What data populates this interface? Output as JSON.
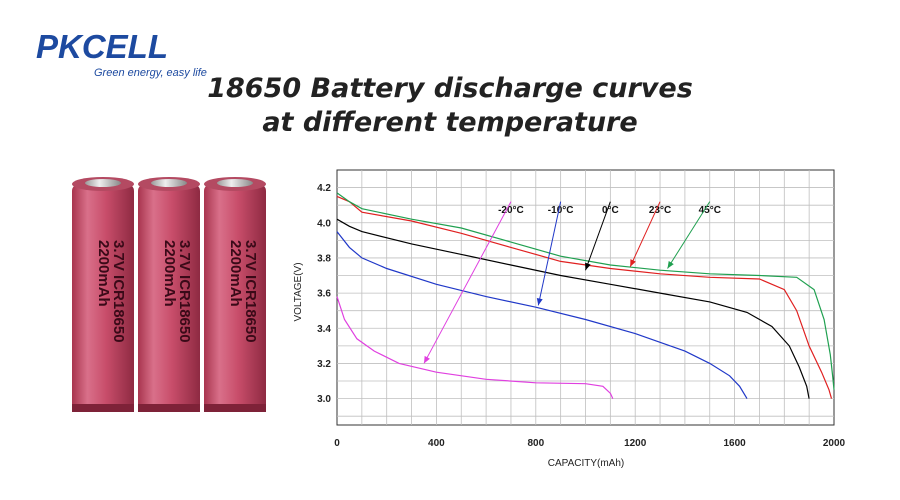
{
  "brand": {
    "logo_text": "PKCELL",
    "tagline": "Green energy, easy life"
  },
  "title": {
    "line1": "18650 Battery discharge curves",
    "line2": "at different temperature"
  },
  "battery_label": {
    "voltage": "3.7V",
    "model": "ICR18650",
    "capacity": "2200mAh"
  },
  "chart_data": {
    "type": "line",
    "xlabel": "CAPACITY(mAh)",
    "ylabel": "VOLTAGE(V)",
    "xlim": [
      0,
      2000
    ],
    "ylim": [
      2.85,
      4.3
    ],
    "xticks": [
      "0",
      "400",
      "800",
      "1200",
      "1600",
      "2000"
    ],
    "yticks": [
      "3.0",
      "3.2",
      "3.4",
      "3.6",
      "3.8",
      "4.0",
      "4.2"
    ],
    "grid": true,
    "series": [
      {
        "name": "-20°C",
        "color": "#e040e0",
        "label_x": 700,
        "points": [
          [
            0,
            3.58
          ],
          [
            30,
            3.45
          ],
          [
            80,
            3.34
          ],
          [
            150,
            3.27
          ],
          [
            250,
            3.2
          ],
          [
            400,
            3.15
          ],
          [
            600,
            3.11
          ],
          [
            800,
            3.09
          ],
          [
            1000,
            3.085
          ],
          [
            1070,
            3.07
          ],
          [
            1100,
            3.03
          ],
          [
            1110,
            3.0
          ]
        ]
      },
      {
        "name": "-10°C",
        "color": "#2038c8",
        "label_x": 900,
        "points": [
          [
            0,
            3.95
          ],
          [
            50,
            3.86
          ],
          [
            100,
            3.8
          ],
          [
            200,
            3.74
          ],
          [
            400,
            3.65
          ],
          [
            600,
            3.58
          ],
          [
            800,
            3.52
          ],
          [
            1000,
            3.45
          ],
          [
            1200,
            3.37
          ],
          [
            1400,
            3.27
          ],
          [
            1500,
            3.2
          ],
          [
            1580,
            3.13
          ],
          [
            1620,
            3.07
          ],
          [
            1650,
            3.0
          ]
        ]
      },
      {
        "name": "0°C",
        "color": "#000000",
        "label_x": 1100,
        "points": [
          [
            0,
            4.02
          ],
          [
            50,
            3.98
          ],
          [
            100,
            3.95
          ],
          [
            300,
            3.88
          ],
          [
            500,
            3.82
          ],
          [
            700,
            3.76
          ],
          [
            900,
            3.7
          ],
          [
            1100,
            3.65
          ],
          [
            1300,
            3.6
          ],
          [
            1500,
            3.55
          ],
          [
            1650,
            3.49
          ],
          [
            1750,
            3.41
          ],
          [
            1820,
            3.3
          ],
          [
            1860,
            3.18
          ],
          [
            1890,
            3.07
          ],
          [
            1900,
            3.0
          ]
        ]
      },
      {
        "name": "23°C",
        "color": "#e02020",
        "label_x": 1300,
        "points": [
          [
            0,
            4.15
          ],
          [
            50,
            4.12
          ],
          [
            100,
            4.06
          ],
          [
            300,
            4.01
          ],
          [
            500,
            3.94
          ],
          [
            700,
            3.86
          ],
          [
            900,
            3.78
          ],
          [
            1100,
            3.74
          ],
          [
            1300,
            3.71
          ],
          [
            1500,
            3.69
          ],
          [
            1700,
            3.68
          ],
          [
            1800,
            3.62
          ],
          [
            1850,
            3.5
          ],
          [
            1900,
            3.3
          ],
          [
            1950,
            3.15
          ],
          [
            1980,
            3.05
          ],
          [
            1990,
            3.0
          ]
        ]
      },
      {
        "name": "45°C",
        "color": "#20a050",
        "label_x": 1500,
        "points": [
          [
            0,
            4.17
          ],
          [
            50,
            4.12
          ],
          [
            100,
            4.08
          ],
          [
            300,
            4.02
          ],
          [
            500,
            3.97
          ],
          [
            700,
            3.89
          ],
          [
            900,
            3.81
          ],
          [
            1100,
            3.76
          ],
          [
            1300,
            3.73
          ],
          [
            1500,
            3.71
          ],
          [
            1700,
            3.7
          ],
          [
            1850,
            3.69
          ],
          [
            1920,
            3.62
          ],
          [
            1960,
            3.45
          ],
          [
            1985,
            3.25
          ],
          [
            1995,
            3.12
          ],
          [
            2000,
            3.05
          ]
        ]
      }
    ]
  }
}
